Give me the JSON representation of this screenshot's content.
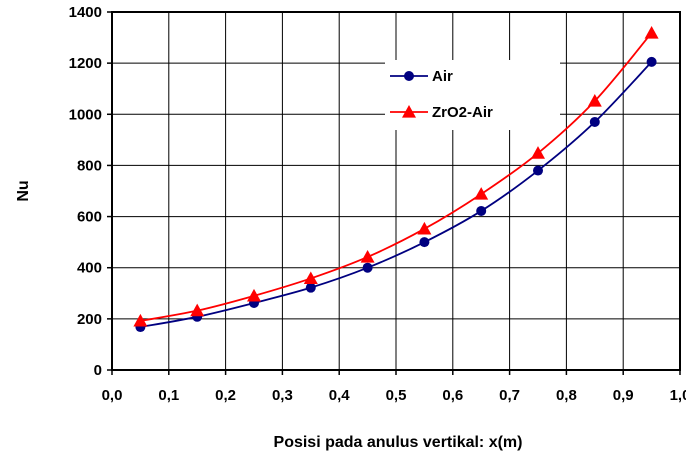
{
  "chart_data": {
    "type": "line",
    "xlabel": "Posisi pada anulus vertikal: x(m)",
    "ylabel": "Nu",
    "xlim": [
      0.0,
      1.0
    ],
    "ylim": [
      0,
      1400
    ],
    "x_ticks": [
      "0,0",
      "0,1",
      "0,2",
      "0,3",
      "0,4",
      "0,5",
      "0,6",
      "0,7",
      "0,8",
      "0,9",
      "1,0"
    ],
    "y_ticks": [
      "0",
      "200",
      "400",
      "600",
      "800",
      "1000",
      "1200",
      "1400"
    ],
    "grid": true,
    "legend_position": "top-right",
    "series": [
      {
        "name": "Air",
        "color": "#000080",
        "marker": "circle",
        "x": [
          0.05,
          0.15,
          0.25,
          0.35,
          0.45,
          0.55,
          0.65,
          0.75,
          0.85,
          0.95
        ],
        "y": [
          168,
          208,
          262,
          322,
          400,
          500,
          622,
          780,
          970,
          1205
        ]
      },
      {
        "name": "ZrO2-Air",
        "color": "#ff0000",
        "marker": "triangle",
        "x": [
          0.05,
          0.15,
          0.25,
          0.35,
          0.45,
          0.55,
          0.65,
          0.75,
          0.85,
          0.95
        ],
        "y": [
          192,
          232,
          290,
          358,
          442,
          552,
          688,
          848,
          1052,
          1318
        ]
      }
    ]
  }
}
